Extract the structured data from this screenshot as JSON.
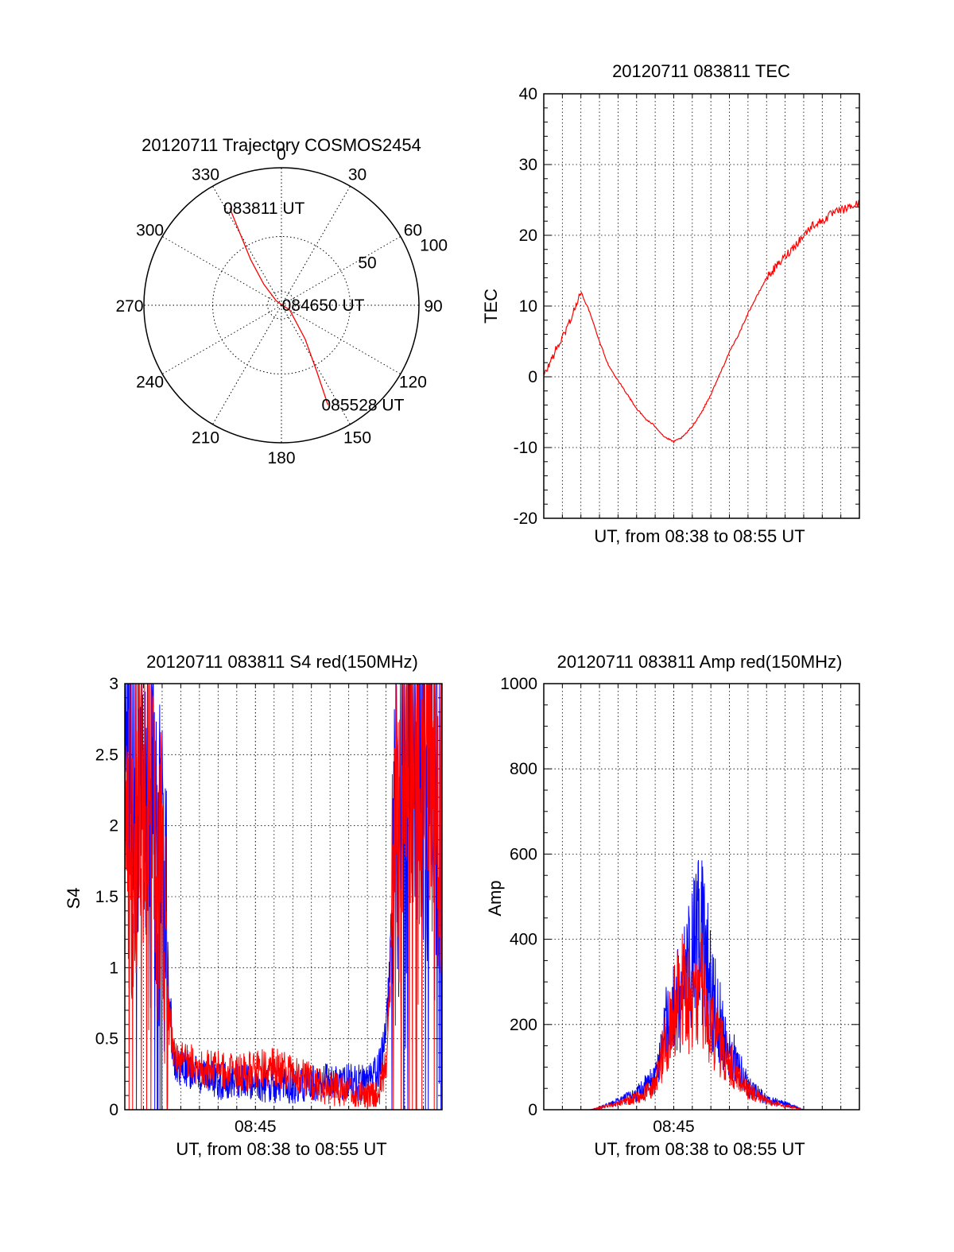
{
  "chart_data": [
    {
      "type": "polar",
      "title": "20120711 Trajectory COSMOS2454",
      "angle_labels": [
        "0",
        "30",
        "60",
        "90",
        "120",
        "150",
        "180",
        "210",
        "240",
        "270",
        "300",
        "330"
      ],
      "radial_labels": [
        "50",
        "100"
      ],
      "trajectory_color": "#ff0000",
      "trajectory": [
        {
          "az": 332,
          "r": 80
        },
        {
          "az": 330,
          "r": 60
        },
        {
          "az": 326,
          "r": 40
        },
        {
          "az": 320,
          "r": 20
        },
        {
          "az": 310,
          "r": 5
        },
        {
          "az": 120,
          "r": 7
        },
        {
          "az": 145,
          "r": 30
        },
        {
          "az": 152,
          "r": 55
        },
        {
          "az": 155,
          "r": 80
        }
      ],
      "annotations": [
        {
          "text": "083811 UT",
          "az": 332,
          "r": 80
        },
        {
          "text": "084650 UT",
          "az": 90,
          "r": 5
        },
        {
          "text": "085528 UT",
          "az": 155,
          "r": 80
        }
      ]
    },
    {
      "type": "line",
      "title": "20120711 083811 TEC",
      "xlabel": "UT, from 08:38 to 08:55 UT",
      "ylabel": "TEC",
      "xlim": [
        0,
        17
      ],
      "ylim": [
        -20,
        40
      ],
      "yticks": [
        -20,
        -10,
        0,
        10,
        20,
        30,
        40
      ],
      "grid": true,
      "series": [
        {
          "color": "#ff0000",
          "x": [
            0,
            0.5,
            1,
            1.5,
            1.8,
            2.0,
            2.5,
            3.0,
            3.5,
            4.0,
            4.5,
            5.0,
            5.5,
            6.0,
            6.5,
            7.0,
            7.5,
            8.0,
            8.5,
            9.0,
            9.5,
            10.0,
            10.5,
            11.0,
            11.5,
            12.0,
            12.5,
            13.0,
            13.5,
            14.0,
            14.5,
            15.0,
            15.5,
            16.0,
            16.5,
            17.0
          ],
          "y": [
            0,
            3,
            5.5,
            8.5,
            10.5,
            12,
            9,
            5,
            1.5,
            -0.5,
            -2.5,
            -4.5,
            -6,
            -7,
            -8.5,
            -9.2,
            -8.5,
            -7,
            -5,
            -2.5,
            0.5,
            3.5,
            6,
            9,
            11.5,
            14,
            15.5,
            17,
            18.5,
            20,
            21.5,
            22,
            23,
            23.5,
            24,
            24.5
          ]
        }
      ]
    },
    {
      "type": "line",
      "title": "20120711 083811 S4 red(150MHz)",
      "xlabel": "UT, from 08:38 to 08:55 UT",
      "ylabel": "S4",
      "xlim": [
        0,
        17
      ],
      "ylim": [
        0,
        3
      ],
      "yticks": [
        0,
        0.5,
        1,
        1.5,
        2,
        2.5,
        3
      ],
      "xtick_labels": [
        {
          "x": 7,
          "label": "08:45"
        }
      ],
      "grid": true,
      "series": [
        {
          "color": "#0000ff",
          "x": [
            0,
            0.5,
            1.0,
            1.5,
            2.0,
            2.3,
            2.6,
            3.0,
            4.0,
            5.0,
            6.0,
            7.0,
            8.0,
            9.0,
            10.0,
            11.0,
            12.0,
            13.0,
            13.5,
            14.0,
            14.2,
            14.5,
            15.0,
            15.5,
            16.0,
            16.5,
            17.0
          ],
          "y": [
            2.3,
            2.5,
            2.4,
            2.2,
            2.0,
            1.0,
            0.35,
            0.3,
            0.25,
            0.2,
            0.2,
            0.18,
            0.18,
            0.16,
            0.18,
            0.2,
            0.2,
            0.18,
            0.25,
            0.5,
            1.0,
            1.8,
            2.5,
            2.6,
            2.5,
            2.4,
            2.3
          ]
        },
        {
          "color": "#ff0000",
          "x": [
            0,
            0.5,
            1.0,
            1.5,
            2.0,
            2.3,
            2.6,
            3.0,
            4.0,
            5.0,
            6.0,
            7.0,
            8.0,
            9.0,
            10.0,
            11.0,
            12.0,
            13.0,
            13.5,
            14.0,
            14.2,
            14.5,
            15.0,
            15.5,
            16.0,
            16.5,
            17.0
          ],
          "y": [
            1.6,
            2.2,
            2.4,
            2.0,
            1.5,
            0.7,
            0.45,
            0.35,
            0.3,
            0.28,
            0.25,
            0.28,
            0.3,
            0.25,
            0.2,
            0.15,
            0.12,
            0.08,
            0.1,
            0.3,
            0.9,
            1.8,
            2.6,
            2.8,
            2.7,
            2.4,
            2.2
          ]
        }
      ]
    },
    {
      "type": "line",
      "title": "20120711 083811 Amp red(150MHz)",
      "xlabel": "UT, from 08:38 to 08:55 UT",
      "ylabel": "Amp",
      "xlim": [
        0,
        17
      ],
      "ylim": [
        0,
        1000
      ],
      "yticks": [
        0,
        200,
        400,
        600,
        800,
        1000
      ],
      "xtick_labels": [
        {
          "x": 7,
          "label": "08:45"
        }
      ],
      "grid": true,
      "series": [
        {
          "color": "#0000ff",
          "x": [
            0,
            2.5,
            3.0,
            4.0,
            5.0,
            6.0,
            6.5,
            7.0,
            7.5,
            8.0,
            8.5,
            9.0,
            9.5,
            10.0,
            11.0,
            12.0,
            13.0,
            14.0,
            14.5,
            17.0
          ],
          "y": [
            0,
            0,
            5,
            20,
            40,
            80,
            200,
            250,
            300,
            380,
            450,
            300,
            220,
            150,
            60,
            25,
            15,
            0,
            0,
            0
          ]
        },
        {
          "color": "#ff0000",
          "x": [
            0,
            2.5,
            3.0,
            4.0,
            5.0,
            6.0,
            6.5,
            7.0,
            7.5,
            8.0,
            8.5,
            9.0,
            9.5,
            10.0,
            11.0,
            12.0,
            13.0,
            14.0,
            14.5,
            17.0
          ],
          "y": [
            0,
            0,
            5,
            15,
            30,
            60,
            160,
            250,
            300,
            260,
            300,
            220,
            160,
            120,
            50,
            20,
            10,
            0,
            0,
            0
          ]
        }
      ]
    }
  ]
}
